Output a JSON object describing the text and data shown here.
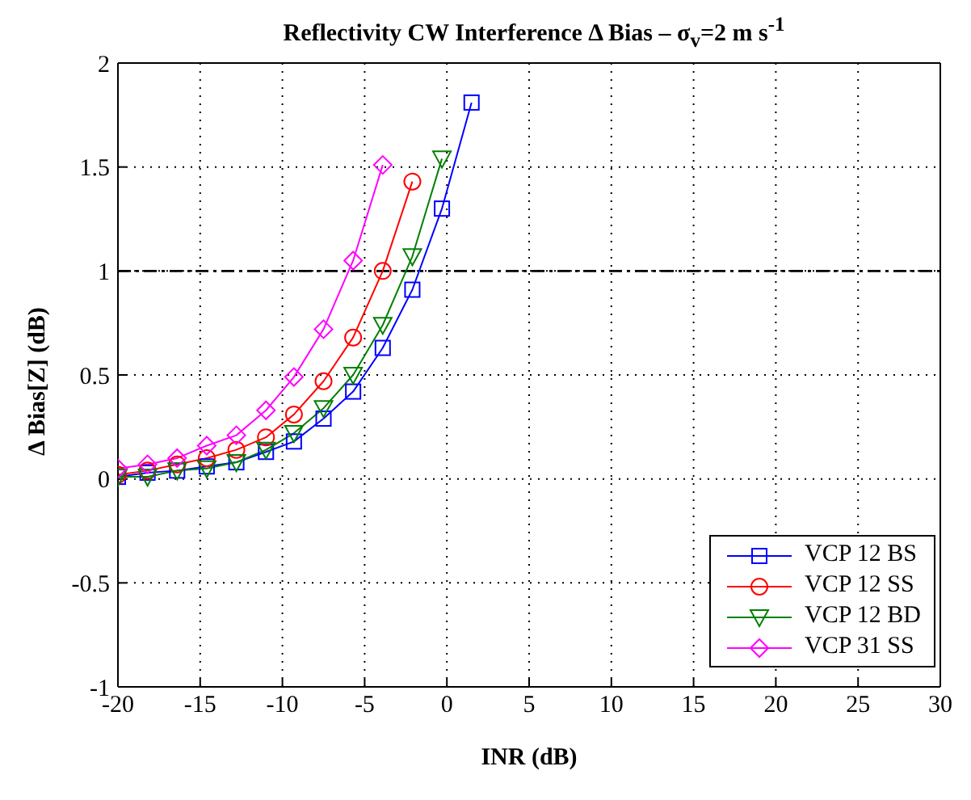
{
  "chart_data": {
    "type": "line",
    "title": "Reflectivity CW Interference Δ Bias –  σ$_{v}$=2 m s$^{-1}$",
    "xlabel": "INR (dB)",
    "ylabel": "Δ Bias[Z] (dB)",
    "x": [
      -20,
      -18.2,
      -16.4,
      -14.6,
      -12.8,
      -11,
      -9.3,
      -7.5,
      -5.7,
      -3.9,
      -2.1,
      -0.3,
      1.5
    ],
    "series": [
      {
        "name": "VCP 12 BS",
        "color": "#0000ff",
        "marker": "square",
        "values": [
          0.01,
          0.03,
          0.04,
          0.06,
          0.08,
          0.13,
          0.18,
          0.29,
          0.42,
          0.63,
          0.91,
          1.3,
          1.81
        ]
      },
      {
        "name": "VCP 12 SS",
        "color": "#ff0000",
        "marker": "circle",
        "values": [
          0.02,
          0.04,
          0.07,
          0.1,
          0.14,
          0.2,
          0.31,
          0.47,
          0.68,
          1.0,
          1.43,
          null,
          null
        ]
      },
      {
        "name": "VCP 12 BD",
        "color": "#008000",
        "marker": "triangle",
        "values": [
          0.01,
          0.01,
          0.04,
          0.05,
          0.08,
          0.14,
          0.22,
          0.34,
          0.5,
          0.74,
          1.07,
          1.54,
          null
        ]
      },
      {
        "name": "VCP 31 SS",
        "color": "#ff00ff",
        "marker": "diamond",
        "values": [
          0.05,
          0.07,
          0.1,
          0.16,
          0.21,
          0.33,
          0.49,
          0.72,
          1.05,
          1.51,
          null,
          null,
          null
        ]
      }
    ],
    "xlim": [
      -20,
      30
    ],
    "xticks": [
      -20,
      -15,
      -10,
      -5,
      0,
      5,
      10,
      15,
      20,
      25,
      30
    ],
    "ylim": [
      -1,
      2
    ],
    "yticks": [
      -1,
      -0.5,
      0,
      0.5,
      1,
      1.5,
      2
    ],
    "ref_lines": [
      {
        "axis": "y",
        "value": 1,
        "color": "#000000",
        "line_style": "dashdot"
      }
    ],
    "grid": true,
    "legend": "bottom right",
    "line_style": "solid"
  }
}
